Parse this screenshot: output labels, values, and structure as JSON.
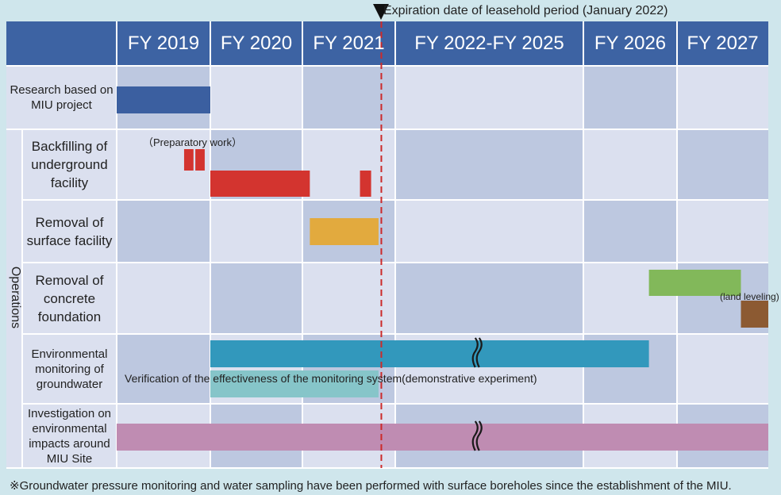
{
  "chart_data": {
    "type": "gantt",
    "periods": [
      "FY 2019",
      "FY 2020",
      "FY 2021",
      "FY 2022-FY 2025",
      "FY 2026",
      "FY 2027"
    ],
    "marker": {
      "label": "Expiration date of leasehold period (January 2022)",
      "position_fy": 2021.85
    },
    "group_label": "Operations",
    "rows": [
      {
        "label": "Research based on MIU project",
        "group": false,
        "bars": [
          {
            "start": 2019.0,
            "end": 2020.0,
            "color": "#3b5fa0"
          }
        ]
      },
      {
        "label": "Backfilling of underground facility",
        "group": true,
        "note": "（Preparatory work）",
        "bars": [
          {
            "start": 2019.72,
            "end": 2019.82,
            "color": "#d3342f",
            "lane": "upper"
          },
          {
            "start": 2019.84,
            "end": 2019.94,
            "color": "#d3342f",
            "lane": "upper"
          },
          {
            "start": 2020.0,
            "end": 2021.08,
            "color": "#d3342f",
            "lane": "lower"
          },
          {
            "start": 2021.62,
            "end": 2021.74,
            "color": "#d3342f",
            "lane": "lower"
          }
        ]
      },
      {
        "label": "Removal of surface facility",
        "group": true,
        "bars": [
          {
            "start": 2021.08,
            "end": 2021.82,
            "color": "#e2aa3e"
          }
        ]
      },
      {
        "label": "Removal of concrete foundation",
        "group": true,
        "note": "(land leveling)",
        "bars": [
          {
            "start": 2026.7,
            "end": 2027.7,
            "color": "#82b85a",
            "lane": "upper"
          },
          {
            "start": 2027.7,
            "end": 2028.0,
            "color": "#8c5a32",
            "lane": "lower"
          }
        ]
      },
      {
        "label": "Environmental monitoring of groundwater",
        "group": true,
        "note": "Verification of the effectiveness of the monitoring  system(demonstrative experiment)",
        "bars": [
          {
            "start": 2020.0,
            "end": 2026.7,
            "color": "#3298bc",
            "lane": "upper",
            "break": true
          },
          {
            "start": 2020.0,
            "end": 2021.82,
            "color": "#86c5c9",
            "lane": "lower"
          }
        ]
      },
      {
        "label": "Investigation on environmental impacts around MIU Site",
        "group": true,
        "bars": [
          {
            "start": 2019.0,
            "end": 2028.0,
            "color": "#bf8cb2",
            "break": true
          }
        ]
      }
    ]
  },
  "footnote": "※Groundwater pressure monitoring and water sampling have been performed with surface boreholes since the establishment of the MIU.",
  "colors": {
    "header": "#3d63a3",
    "row_dark": "#bdc8e0",
    "row_light": "#dbe0ef",
    "grid": "#ffffff",
    "marker_line": "#cc2a2a",
    "background": "#cfe6ec"
  }
}
